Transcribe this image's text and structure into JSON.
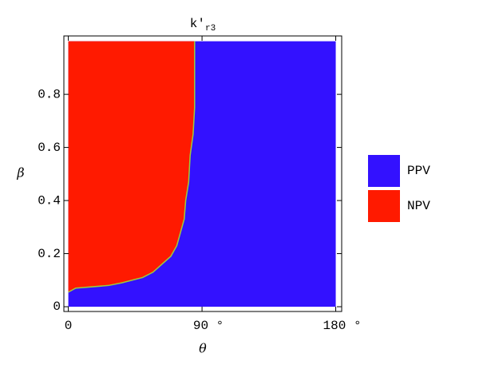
{
  "chart_data": {
    "type": "region",
    "title": {
      "base": "k′",
      "sub": "r3"
    },
    "x_label": "θ",
    "y_label": "β",
    "xlim": [
      -3,
      184
    ],
    "ylim": [
      -0.018,
      1.02
    ],
    "xticks": [
      0,
      {
        "value": 90,
        "label": "90 °"
      },
      {
        "value": 180,
        "label": "180 °"
      }
    ],
    "yticks": [
      0,
      0.2,
      0.4,
      0.6,
      0.8
    ],
    "domain": {
      "x": [
        0,
        180
      ],
      "y": [
        0,
        1
      ]
    },
    "regions": [
      {
        "name": "PPV",
        "color": "#3311ff"
      },
      {
        "name": "NPV",
        "color": "#ff1a00"
      }
    ],
    "boundary": {
      "color": "#9ccc3c",
      "x": [
        0,
        5,
        27,
        36,
        43,
        50,
        57,
        63,
        69,
        73,
        75,
        78,
        79,
        81,
        82,
        84,
        85,
        85
      ],
      "y": [
        0.055,
        0.07,
        0.08,
        0.09,
        0.1,
        0.11,
        0.13,
        0.16,
        0.19,
        0.23,
        0.27,
        0.33,
        0.4,
        0.47,
        0.57,
        0.65,
        0.75,
        1
      ]
    }
  }
}
